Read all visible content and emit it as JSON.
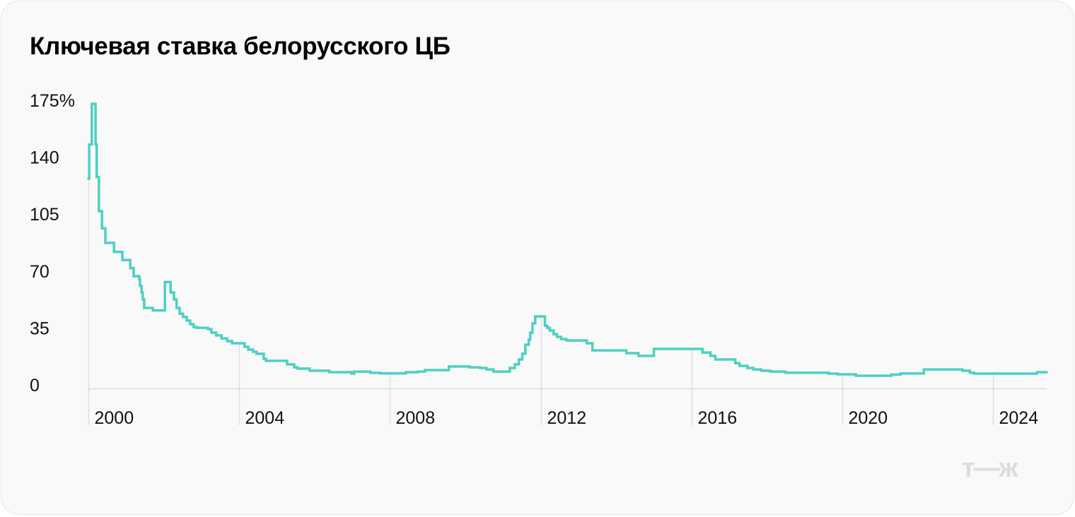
{
  "title": "Ключевая ставка белорусского ЦБ",
  "logo": "т—ж",
  "chart_data": {
    "type": "line",
    "step": true,
    "title": "Ключевая ставка белорусского ЦБ",
    "xlabel": "",
    "ylabel": "",
    "xlim": [
      2000,
      2025.42
    ],
    "ylim": [
      0,
      175
    ],
    "x_ticks": [
      2000,
      2004,
      2008,
      2012,
      2016,
      2020,
      2024
    ],
    "x_tick_labels": [
      "2000",
      "2004",
      "2008",
      "2012",
      "2016",
      "2020",
      "2024"
    ],
    "y_ticks": [
      0,
      35,
      70,
      105,
      140,
      175
    ],
    "y_tick_labels": [
      "0",
      "35",
      "70",
      "105",
      "140",
      "175%"
    ],
    "grid": "baseline and year tick lines only",
    "color": "#4ecfc3",
    "x": [
      2000.0,
      2000.02,
      2000.09,
      2000.19,
      2000.22,
      2000.28,
      2000.36,
      2000.45,
      2000.68,
      2000.9,
      2001.11,
      2001.2,
      2001.35,
      2001.37,
      2001.41,
      2001.44,
      2001.48,
      2001.71,
      2002.03,
      2002.18,
      2002.27,
      2002.34,
      2002.42,
      2002.51,
      2002.61,
      2002.7,
      2002.79,
      2002.87,
      2003.17,
      2003.26,
      2003.39,
      2003.53,
      2003.68,
      2003.81,
      2004.14,
      2004.24,
      2004.37,
      2004.46,
      2004.65,
      2004.71,
      2005.27,
      2005.46,
      2005.55,
      2005.87,
      2006.39,
      2006.98,
      2007.05,
      2007.48,
      2007.74,
      2008.42,
      2008.74,
      2008.93,
      2009.56,
      2010.11,
      2010.39,
      2010.56,
      2010.74,
      2011.18,
      2011.31,
      2011.42,
      2011.51,
      2011.59,
      2011.68,
      2011.72,
      2011.78,
      2011.85,
      2012.11,
      2012.17,
      2012.24,
      2012.34,
      2012.43,
      2012.54,
      2012.68,
      2013.22,
      2013.37,
      2014.27,
      2014.59,
      2015.0,
      2016.29,
      2016.5,
      2016.63,
      2017.16,
      2017.27,
      2017.48,
      2017.64,
      2017.85,
      2018.09,
      2018.49,
      2019.63,
      2019.88,
      2020.36,
      2021.3,
      2021.54,
      2022.16,
      2023.18,
      2023.38,
      2023.49,
      2025.16,
      2025.42
    ],
    "y": [
      129,
      150,
      175,
      150,
      130,
      109,
      98.5,
      89.5,
      84,
      79,
      74,
      69,
      67,
      63,
      59,
      54.7,
      49.5,
      48,
      65.5,
      59,
      54.7,
      49.5,
      46,
      44,
      41.7,
      39.5,
      37.8,
      37.3,
      36.5,
      34.3,
      32.6,
      30.8,
      29.1,
      27.8,
      25.6,
      23.9,
      22.6,
      21.3,
      18.2,
      17,
      14.8,
      13,
      12.2,
      10.9,
      10,
      9.1,
      10.4,
      9.6,
      9.3,
      10,
      10.4,
      11.3,
      13.5,
      13,
      12.6,
      11.7,
      10.4,
      12.6,
      14.8,
      17.8,
      21.3,
      26.9,
      30,
      34.3,
      40,
      44.3,
      38.6,
      37.3,
      35.6,
      33.4,
      31.7,
      30.4,
      29.5,
      27.8,
      23.4,
      21.7,
      20,
      24.3,
      22.1,
      20,
      17.8,
      15.6,
      13.9,
      12.6,
      11.7,
      10.9,
      10.4,
      9.7,
      9.1,
      8.7,
      7.8,
      8.5,
      9.2,
      11.7,
      10.9,
      9.7,
      9.1,
      10,
      10
    ]
  }
}
